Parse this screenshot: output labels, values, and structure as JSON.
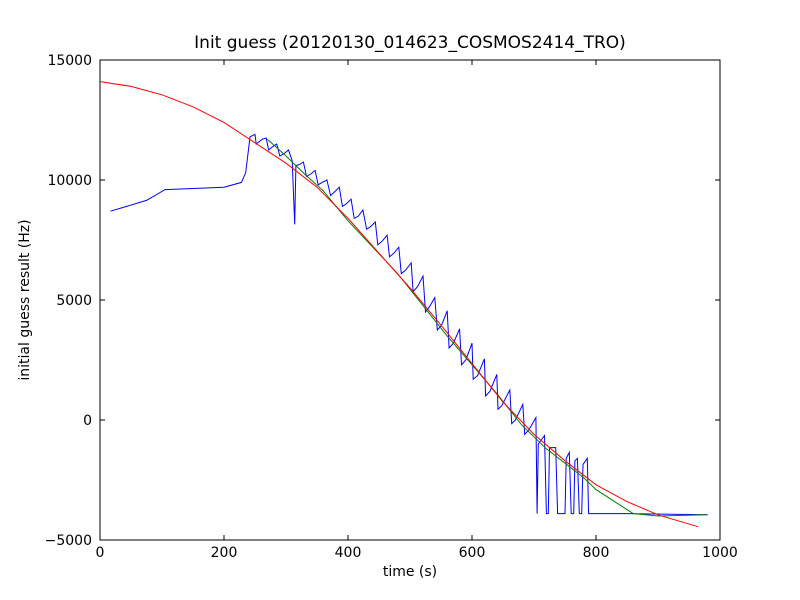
{
  "chart_data": {
    "type": "line",
    "title": "Init guess (20120130_014623_COSMOS2414_TRO)",
    "xlabel": "time (s)",
    "ylabel": "initial guess result (Hz)",
    "xlim": [
      0,
      1000
    ],
    "ylim": [
      -5000,
      15000
    ],
    "xticks": [
      0,
      200,
      400,
      600,
      800,
      1000
    ],
    "yticks": [
      -5000,
      0,
      5000,
      10000,
      15000
    ],
    "grid": false,
    "legend": "none",
    "series": [
      {
        "color": "#0000ff",
        "points": [
          [
            17,
            8700
          ],
          [
            75,
            9150
          ],
          [
            105,
            9600
          ],
          [
            200,
            9700
          ],
          [
            228,
            9900
          ],
          [
            235,
            10300
          ],
          [
            242,
            11800
          ],
          [
            250,
            11900
          ],
          [
            252,
            11500
          ],
          [
            262,
            11700
          ],
          [
            268,
            11750
          ],
          [
            272,
            11250
          ],
          [
            279,
            11400
          ],
          [
            285,
            11500
          ],
          [
            290,
            11000
          ],
          [
            297,
            11100
          ],
          [
            304,
            11250
          ],
          [
            310,
            10800
          ],
          [
            314,
            8150
          ],
          [
            316,
            10600
          ],
          [
            322,
            10650
          ],
          [
            328,
            10750
          ],
          [
            333,
            10150
          ],
          [
            340,
            10250
          ],
          [
            347,
            10400
          ],
          [
            352,
            9800
          ],
          [
            358,
            9900
          ],
          [
            366,
            10000
          ],
          [
            372,
            9350
          ],
          [
            378,
            9500
          ],
          [
            386,
            9700
          ],
          [
            391,
            8900
          ],
          [
            397,
            9000
          ],
          [
            405,
            9200
          ],
          [
            410,
            8400
          ],
          [
            417,
            8500
          ],
          [
            424,
            8750
          ],
          [
            430,
            7950
          ],
          [
            436,
            8050
          ],
          [
            444,
            8250
          ],
          [
            448,
            7300
          ],
          [
            455,
            7450
          ],
          [
            463,
            7700
          ],
          [
            467,
            6800
          ],
          [
            474,
            6950
          ],
          [
            482,
            7200
          ],
          [
            486,
            6100
          ],
          [
            493,
            6250
          ],
          [
            502,
            6550
          ],
          [
            505,
            5350
          ],
          [
            512,
            5550
          ],
          [
            521,
            6000
          ],
          [
            525,
            4500
          ],
          [
            531,
            4700
          ],
          [
            540,
            5100
          ],
          [
            544,
            3750
          ],
          [
            551,
            3950
          ],
          [
            560,
            4550
          ],
          [
            563,
            3000
          ],
          [
            570,
            3200
          ],
          [
            580,
            3800
          ],
          [
            583,
            2300
          ],
          [
            590,
            2500
          ],
          [
            600,
            3200
          ],
          [
            602,
            1700
          ],
          [
            609,
            1850
          ],
          [
            620,
            2550
          ],
          [
            622,
            1000
          ],
          [
            629,
            1200
          ],
          [
            640,
            1900
          ],
          [
            642,
            450
          ],
          [
            648,
            600
          ],
          [
            661,
            1250
          ],
          [
            664,
            -150
          ],
          [
            670,
            0
          ],
          [
            682,
            650
          ],
          [
            685,
            -600
          ],
          [
            692,
            -400
          ],
          [
            703,
            100
          ],
          [
            705,
            -3900
          ],
          [
            707,
            -1000
          ],
          [
            717,
            -650
          ],
          [
            720,
            -3900
          ],
          [
            723,
            -3900
          ],
          [
            725,
            -1150
          ],
          [
            735,
            -1150
          ],
          [
            738,
            -3900
          ],
          [
            750,
            -3900
          ],
          [
            752,
            -1600
          ],
          [
            757,
            -1350
          ],
          [
            760,
            -3900
          ],
          [
            764,
            -3900
          ],
          [
            766,
            -1700
          ],
          [
            770,
            -1600
          ],
          [
            773,
            -3900
          ],
          [
            777,
            -3900
          ],
          [
            779,
            -1850
          ],
          [
            786,
            -1600
          ],
          [
            788,
            -3900
          ],
          [
            850,
            -3900
          ],
          [
            980,
            -3950
          ]
        ]
      },
      {
        "color": "#008000",
        "points": [
          [
            270,
            11700
          ],
          [
            300,
            11000
          ],
          [
            330,
            10250
          ],
          [
            360,
            9550
          ],
          [
            400,
            8300
          ],
          [
            440,
            7200
          ],
          [
            480,
            6100
          ],
          [
            520,
            4800
          ],
          [
            560,
            3500
          ],
          [
            600,
            2300
          ],
          [
            640,
            1100
          ],
          [
            680,
            -200
          ],
          [
            700,
            -700
          ],
          [
            720,
            -1200
          ],
          [
            750,
            -1800
          ],
          [
            780,
            -2400
          ],
          [
            800,
            -2900
          ],
          [
            830,
            -3400
          ],
          [
            860,
            -3900
          ],
          [
            900,
            -4000
          ],
          [
            980,
            -3950
          ]
        ]
      },
      {
        "color": "#ff0000",
        "points": [
          [
            0,
            14100
          ],
          [
            50,
            13900
          ],
          [
            100,
            13550
          ],
          [
            150,
            13050
          ],
          [
            200,
            12400
          ],
          [
            250,
            11550
          ],
          [
            300,
            10700
          ],
          [
            350,
            9700
          ],
          [
            400,
            8400
          ],
          [
            450,
            6950
          ],
          [
            500,
            5500
          ],
          [
            550,
            3950
          ],
          [
            600,
            2350
          ],
          [
            650,
            750
          ],
          [
            700,
            -600
          ],
          [
            750,
            -1700
          ],
          [
            800,
            -2700
          ],
          [
            850,
            -3400
          ],
          [
            900,
            -3950
          ],
          [
            965,
            -4450
          ]
        ]
      }
    ]
  }
}
